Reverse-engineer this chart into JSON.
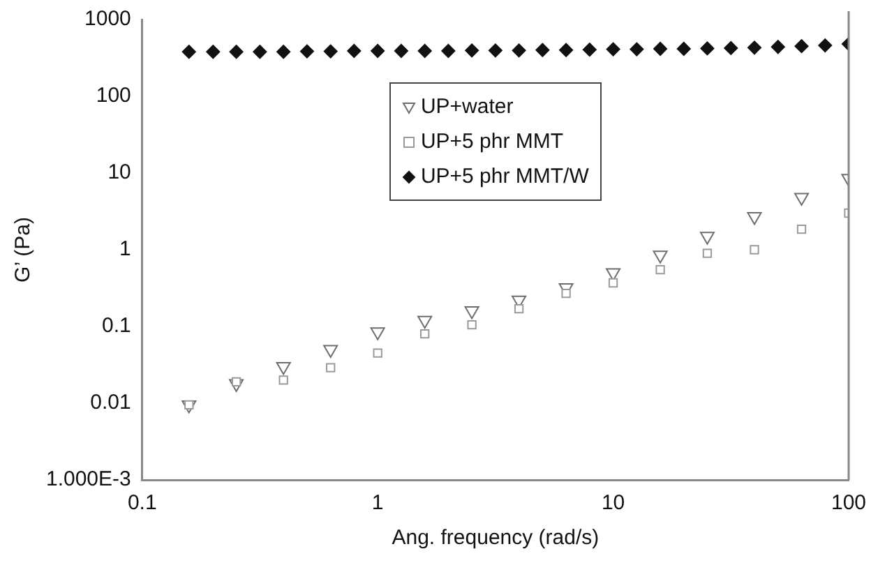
{
  "chart_data": {
    "type": "scatter",
    "xlabel": "Ang. frequency (rad/s)",
    "ylabel": "G’ (Pa)",
    "log": "xy",
    "xlim": [
      0.1,
      100
    ],
    "xticks": [
      0.1,
      1,
      10,
      100
    ],
    "ylim": [
      0.001,
      1000
    ],
    "yticks": [
      {
        "value": 0.001,
        "label": "1.000E-3"
      },
      0.01,
      0.1,
      1,
      10,
      100,
      1000
    ],
    "grid": false,
    "legend": "top",
    "series": [
      {
        "name": "UP+water",
        "color": "#6e6e6e",
        "marker": "triangle",
        "x": [
          0.158,
          0.251,
          0.398,
          0.631,
          1,
          1.585,
          2.512,
          3.98,
          6.31,
          10,
          15.85,
          25.1,
          39.8,
          63.1,
          100
        ],
        "values": [
          0.0095,
          0.018,
          0.03,
          0.05,
          0.085,
          0.12,
          0.16,
          0.22,
          0.32,
          0.5,
          0.85,
          1.5,
          2.7,
          4.8,
          8.5
        ]
      },
      {
        "name": "UP+5 phr MMT",
        "color": "#9a9a9a",
        "marker": "square",
        "x": [
          0.158,
          0.251,
          0.398,
          0.631,
          1,
          1.585,
          2.512,
          3.98,
          6.31,
          10,
          15.85,
          25.1,
          39.8,
          63.1,
          100
        ],
        "values": [
          0.0095,
          0.019,
          0.02,
          0.029,
          0.045,
          0.08,
          0.105,
          0.17,
          0.27,
          0.37,
          0.55,
          0.9,
          1.0,
          1.85,
          3.0
        ]
      },
      {
        "name": "UP+5 phr MMT/W",
        "color": "#111111",
        "marker": "diamond",
        "x": [
          0.158,
          0.2,
          0.251,
          0.316,
          0.398,
          0.501,
          0.631,
          0.794,
          1,
          1.259,
          1.585,
          1.995,
          2.512,
          3.162,
          3.98,
          5.012,
          6.31,
          7.943,
          10,
          12.59,
          15.85,
          19.95,
          25.1,
          31.62,
          39.8,
          50.12,
          63.1,
          79.43,
          100
        ],
        "values": [
          380,
          380,
          380,
          380,
          380,
          385,
          385,
          390,
          390,
          390,
          390,
          390,
          395,
          395,
          395,
          400,
          400,
          405,
          410,
          410,
          415,
          415,
          420,
          425,
          430,
          440,
          450,
          460,
          480
        ]
      }
    ]
  }
}
